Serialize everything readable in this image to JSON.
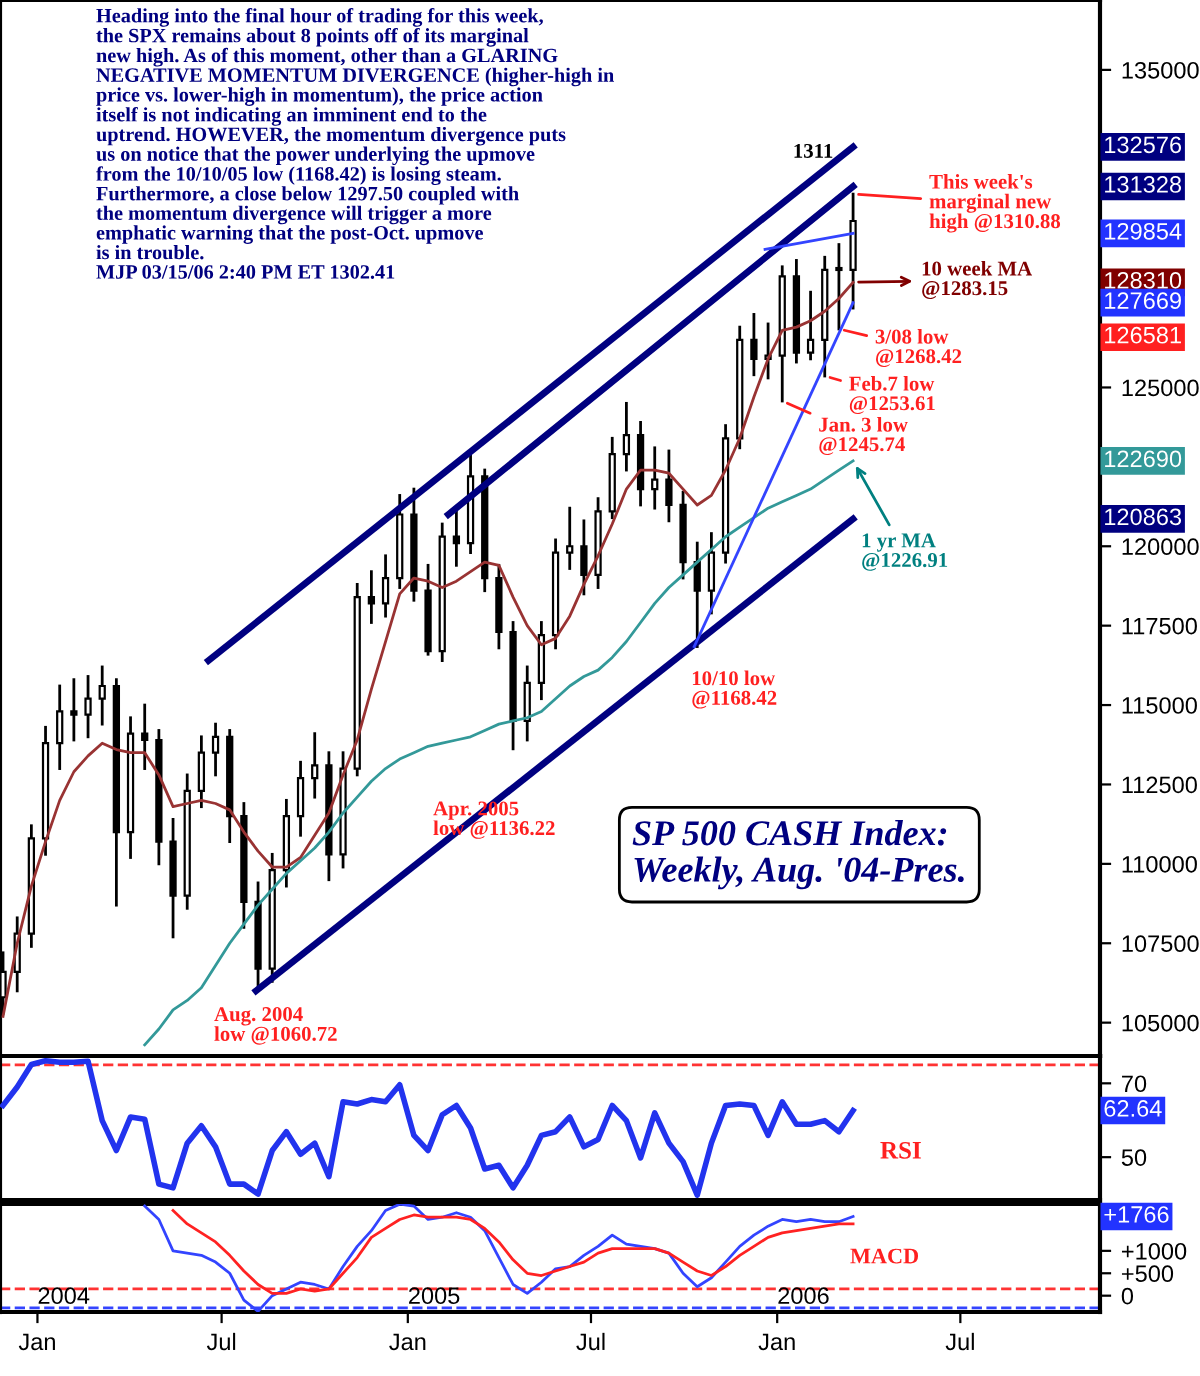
{
  "chart_data": [
    {
      "type": "candlestick",
      "title": "SP 500 CASH Index:\nWeekly, Aug. '04-Pres.",
      "x": [
        "2003-11-28",
        "2003-12-12",
        "2003-12-26",
        "2004-01-09",
        "2004-01-23",
        "2004-02-06",
        "2004-02-20",
        "2004-03-05",
        "2004-03-19",
        "2004-04-02",
        "2004-04-16",
        "2004-04-30",
        "2004-05-14",
        "2004-05-28",
        "2004-06-11",
        "2004-06-25",
        "2004-07-09",
        "2004-07-23",
        "2004-08-06",
        "2004-08-20",
        "2004-09-03",
        "2004-09-17",
        "2004-10-01",
        "2004-10-15",
        "2004-10-29",
        "2004-11-12",
        "2004-11-26",
        "2004-12-10",
        "2004-12-24",
        "2005-01-07",
        "2005-01-21",
        "2005-02-04",
        "2005-02-18",
        "2005-03-04",
        "2005-03-18",
        "2005-04-01",
        "2005-04-15",
        "2005-04-29",
        "2005-05-13",
        "2005-05-27",
        "2005-06-10",
        "2005-06-24",
        "2005-07-08",
        "2005-07-22",
        "2005-08-05",
        "2005-08-19",
        "2005-09-02",
        "2005-09-16",
        "2005-09-30",
        "2005-10-14",
        "2005-10-28",
        "2005-11-11",
        "2005-11-25",
        "2005-12-09",
        "2005-12-23",
        "2006-01-06",
        "2006-01-20",
        "2006-02-03",
        "2006-02-17",
        "2006-03-03",
        "2006-03-17"
      ],
      "ohlc": [
        [
          105800,
          107200,
          105300,
          106600
        ],
        [
          106600,
          108300,
          106000,
          107800
        ],
        [
          107800,
          111200,
          107400,
          110800
        ],
        [
          110800,
          114300,
          110300,
          113800
        ],
        [
          113800,
          115600,
          113000,
          114800
        ],
        [
          114800,
          115800,
          113900,
          114700
        ],
        [
          114700,
          115900,
          114000,
          115200
        ],
        [
          115200,
          116200,
          114400,
          115600
        ],
        [
          115600,
          115800,
          108700,
          111000
        ],
        [
          111000,
          114600,
          110200,
          114100
        ],
        [
          114100,
          115000,
          113000,
          113900
        ],
        [
          113900,
          114200,
          110000,
          110700
        ],
        [
          110700,
          111400,
          107700,
          109000
        ],
        [
          109000,
          112800,
          108600,
          112300
        ],
        [
          112300,
          114000,
          111800,
          113500
        ],
        [
          113500,
          114400,
          112800,
          114000
        ],
        [
          114000,
          114200,
          110700,
          111500
        ],
        [
          111500,
          111900,
          108000,
          108800
        ],
        [
          108800,
          109400,
          106072,
          106700
        ],
        [
          106700,
          110300,
          106300,
          109800
        ],
        [
          109800,
          112000,
          109300,
          111500
        ],
        [
          111500,
          113200,
          110900,
          112700
        ],
        [
          112700,
          114100,
          112100,
          113100
        ],
        [
          113100,
          113500,
          109500,
          110300
        ],
        [
          110300,
          113500,
          109900,
          113000
        ],
        [
          113000,
          118800,
          112800,
          118400
        ],
        [
          118400,
          119200,
          117600,
          118200
        ],
        [
          118200,
          119700,
          117800,
          119000
        ],
        [
          119000,
          121600,
          118700,
          121000
        ],
        [
          121000,
          121800,
          118300,
          118600
        ],
        [
          118600,
          119400,
          116600,
          116700
        ],
        [
          116700,
          120700,
          116400,
          120300
        ],
        [
          120300,
          121200,
          119400,
          120100
        ],
        [
          120100,
          122900,
          119800,
          122200
        ],
        [
          122200,
          122400,
          118600,
          119000
        ],
        [
          119000,
          119400,
          116800,
          117300
        ],
        [
          117300,
          117600,
          113622,
          114500
        ],
        [
          114500,
          116200,
          113900,
          115700
        ],
        [
          115700,
          117600,
          115200,
          117200
        ],
        [
          117200,
          120200,
          116800,
          119800
        ],
        [
          119800,
          121200,
          119300,
          120000
        ],
        [
          120000,
          120800,
          118500,
          119100
        ],
        [
          119100,
          121500,
          118700,
          121100
        ],
        [
          121100,
          123400,
          120900,
          122900
        ],
        [
          122900,
          124500,
          122400,
          123500
        ],
        [
          123500,
          123900,
          121300,
          121800
        ],
        [
          121800,
          123100,
          121200,
          122100
        ],
        [
          122100,
          123000,
          120800,
          121300
        ],
        [
          121300,
          121700,
          119000,
          119500
        ],
        [
          119500,
          120100,
          116842,
          118600
        ],
        [
          118600,
          120400,
          117900,
          119800
        ],
        [
          119800,
          123800,
          119500,
          123400
        ],
        [
          123400,
          126900,
          123100,
          126500
        ],
        [
          126500,
          127300,
          125400,
          125900
        ],
        [
          125900,
          127000,
          125300,
          126000
        ],
        [
          126000,
          128800,
          124574,
          128500
        ],
        [
          128500,
          129000,
          125800,
          126100
        ],
        [
          126100,
          128000,
          125900,
          126500
        ],
        [
          126500,
          129100,
          125361,
          128700
        ],
        [
          128700,
          129500,
          126842,
          128700
        ],
        [
          128700,
          131088,
          127500,
          130241
        ]
      ],
      "series": [
        {
          "type": "line",
          "color": "#993333",
          "values": [
            105200,
            107500,
            109300,
            110700,
            112000,
            112900,
            113400,
            113800,
            113600,
            113500,
            113500,
            112800,
            111800,
            111900,
            112000,
            111900,
            111700,
            111000,
            110400,
            109900,
            109900,
            110200,
            110900,
            111600,
            112800,
            113900,
            115500,
            117000,
            118500,
            119000,
            118900,
            118700,
            118900,
            119200,
            119500,
            119400,
            118400,
            117500,
            116900,
            117100,
            117800,
            118800,
            119700,
            120700,
            121800,
            122400,
            122400,
            122300,
            121800,
            121300,
            121600,
            122400,
            123400,
            124700,
            125900,
            126800,
            126900,
            127100,
            127400,
            127800,
            128310
          ]
        },
        {
          "type": "line",
          "color": "#339999",
          "values": [
            null,
            null,
            null,
            null,
            null,
            null,
            null,
            null,
            null,
            null,
            104300,
            104800,
            105400,
            105700,
            106100,
            106800,
            107500,
            108100,
            108700,
            109200,
            109700,
            110100,
            110500,
            111000,
            111600,
            112100,
            112600,
            113000,
            113300,
            113500,
            113700,
            113800,
            113900,
            114000,
            114200,
            114400,
            114500,
            114600,
            114800,
            115200,
            115600,
            115900,
            116100,
            116500,
            117000,
            117600,
            118200,
            118700,
            119100,
            119500,
            119900,
            120300,
            120600,
            120900,
            121200,
            121400,
            121600,
            121800,
            122100,
            122400,
            122690
          ]
        },
        {
          "type": "line",
          "color": "#000080",
          "x": [
            "2004-06-18",
            "2006-03-17"
          ],
          "values": [
            116400,
            132576
          ]
        },
        {
          "type": "line",
          "color": "#000080",
          "x": [
            "2005-02-10",
            "2006-03-17"
          ],
          "values": [
            121000,
            131328
          ]
        },
        {
          "type": "line",
          "color": "#000080",
          "x": [
            "2004-08-04",
            "2006-03-17"
          ],
          "values": [
            106000,
            120863
          ]
        },
        {
          "type": "line",
          "color": "#3344ff",
          "x": [
            "2005-12-20",
            "2006-03-17"
          ],
          "values": [
            129350,
            129854
          ]
        },
        {
          "type": "line",
          "color": "#3344ff",
          "x": [
            "2005-10-11",
            "2006-03-17"
          ],
          "values": [
            116842,
            127669
          ]
        }
      ],
      "xlim": [
        "2003-11-25",
        "2006-11-16"
      ],
      "ylim": [
        103950,
        137200
      ],
      "yticks": [
        105000,
        107500,
        110000,
        112500,
        115000,
        117500,
        120000,
        {
          "value": 122500,
          "label": null
        },
        125000,
        {
          "value": 127500,
          "label": null
        },
        {
          "value": 130000,
          "label": null
        },
        {
          "value": 132500,
          "label": null
        },
        135000
      ],
      "tick_labels": "y",
      "annotations": [
        "Heading into the final hour of trading for this week,\nthe SPX remains about 8 points off of its marginal\nnew high. As of this moment, other than a GLARING\nNEGATIVE MOMENTUM DIVERGENCE (higher-high in\nprice vs. lower-high in momentum), the price action\nitself is not indicating an imminent end to the\nuptrend. HOWEVER, the momentum divergence puts\nus on notice that the power underlying the upmove\nfrom the 10/10/05 low (1168.42) is losing steam.\nFurthermore, a close below 1297.50 coupled with\nthe momentum divergence will trigger a more\nemphatic warning that the post-Oct. upmove\nis in trouble.\nMJP 03/15/06 2:40 PM ET 1302.41",
        {
          "text": "Aug. 2004\nlow @1060.72",
          "x": "2004-08-06",
          "y": 106072
        },
        {
          "text": "Apr. 2005\nlow @1136.22",
          "x": "2005-04-15",
          "y": 113622
        },
        {
          "text": "10/10 low\n@1168.42",
          "x": "2005-10-14",
          "y": 116842
        },
        {
          "text": "Jan. 3 low\n@1245.74",
          "x": "2006-01-06",
          "y": 124574
        },
        {
          "text": "Feb.7 low\n@1253.61",
          "x": "2006-02-17",
          "y": 125361
        },
        {
          "text": "3/08 low\n@1268.42",
          "x": "2006-03-03",
          "y": 126842
        },
        {
          "text": "This week's\nmarginal new\nhigh @1310.88",
          "x": "2006-03-17",
          "y": 131088
        },
        {
          "text": "1311",
          "x": "2006-03-17",
          "y": 131088
        },
        {
          "text": "10 week MA\n@1283.15",
          "x": "2006-03-17",
          "y": 128315
        },
        {
          "text": "1 yr MA\n@1226.91",
          "x": "2006-03-17",
          "y": 122691
        },
        {
          "text": "132576",
          "y": 132576
        },
        {
          "text": "131328",
          "y": 131328
        },
        {
          "text": "129854",
          "y": 129854
        },
        {
          "text": "128310",
          "y": 128310
        },
        {
          "text": "127669",
          "y": 127669
        },
        {
          "text": "126581",
          "y": 126581
        },
        {
          "text": "122690",
          "y": 122690
        },
        {
          "text": "120863",
          "y": 120863
        }
      ]
    },
    {
      "type": "line",
      "x": [
        "2003-11-28",
        "2003-12-12",
        "2003-12-26",
        "2004-01-09",
        "2004-01-23",
        "2004-02-06",
        "2004-02-20",
        "2004-03-05",
        "2004-03-19",
        "2004-04-02",
        "2004-04-16",
        "2004-04-30",
        "2004-05-14",
        "2004-05-28",
        "2004-06-11",
        "2004-06-25",
        "2004-07-09",
        "2004-07-23",
        "2004-08-06",
        "2004-08-20",
        "2004-09-03",
        "2004-09-17",
        "2004-10-01",
        "2004-10-15",
        "2004-10-29",
        "2004-11-12",
        "2004-11-26",
        "2004-12-10",
        "2004-12-24",
        "2005-01-07",
        "2005-01-21",
        "2005-02-04",
        "2005-02-18",
        "2005-03-04",
        "2005-03-18",
        "2005-04-01",
        "2005-04-15",
        "2005-04-29",
        "2005-05-13",
        "2005-05-27",
        "2005-06-10",
        "2005-06-24",
        "2005-07-08",
        "2005-07-22",
        "2005-08-05",
        "2005-08-19",
        "2005-09-02",
        "2005-09-16",
        "2005-09-30",
        "2005-10-14",
        "2005-10-28",
        "2005-11-11",
        "2005-11-25",
        "2005-12-09",
        "2005-12-23",
        "2006-01-06",
        "2006-01-20",
        "2006-02-03",
        "2006-02-17",
        "2006-03-03",
        "2006-03-17"
      ],
      "series": [
        {
          "color": "#2233ee",
          "values": [
            64.0,
            69.0,
            75.1,
            76.1,
            75.7,
            75.7,
            76.0,
            59.9,
            51.8,
            60.9,
            60.3,
            42.7,
            41.7,
            53.8,
            58.5,
            52.8,
            42.7,
            42.7,
            40.0,
            51.8,
            56.9,
            50.8,
            53.8,
            44.7,
            65.0,
            64.4,
            65.6,
            65.0,
            69.6,
            55.9,
            51.8,
            61.5,
            64.0,
            57.9,
            46.8,
            47.8,
            41.7,
            47.8,
            55.9,
            56.9,
            60.9,
            52.8,
            54.8,
            64.0,
            59.9,
            49.8,
            62.0,
            53.8,
            48.8,
            39.7,
            53.8,
            64.0,
            64.4,
            64.0,
            55.9,
            65.0,
            58.9,
            58.9,
            59.9,
            56.9,
            62.64
          ]
        }
      ],
      "xlim": [
        "2003-11-25",
        "2006-11-16"
      ],
      "ylim": [
        38.4,
        77.4
      ],
      "yticks": [
        50,
        70
      ],
      "tick_labels": "y",
      "ref_lines": [
        {
          "axis": "y",
          "value": 75,
          "color": "#ff3333",
          "line_style": "dashed"
        }
      ],
      "annotations": [
        "RSI",
        {
          "text": "62.64",
          "y": 62.64
        }
      ]
    },
    {
      "type": "line",
      "series": [
        {
          "color": "#3344ff",
          "x": [
            "2004-04-16",
            "2004-04-30",
            "2004-05-14",
            "2004-05-28",
            "2004-06-11",
            "2004-06-25",
            "2004-07-09",
            "2004-07-23",
            "2004-08-06",
            "2004-08-20",
            "2004-09-03",
            "2004-09-17",
            "2004-10-01",
            "2004-10-15",
            "2004-10-29",
            "2004-11-12",
            "2004-11-26",
            "2004-12-10",
            "2004-12-24",
            "2005-01-07",
            "2005-01-21",
            "2005-02-04",
            "2005-02-18",
            "2005-03-04",
            "2005-03-18",
            "2005-04-01",
            "2005-04-15",
            "2005-04-29",
            "2005-05-13",
            "2005-05-27",
            "2005-06-10",
            "2005-06-24",
            "2005-07-08",
            "2005-07-22",
            "2005-08-05",
            "2005-08-19",
            "2005-09-02",
            "2005-09-16",
            "2005-09-30",
            "2005-10-14",
            "2005-10-28",
            "2005-11-11",
            "2005-11-25",
            "2005-12-09",
            "2005-12-23",
            "2006-01-06",
            "2006-01-20",
            "2006-02-03",
            "2006-02-17",
            "2006-03-03",
            "2006-03-17"
          ],
          "values": [
            2000,
            1700,
            1000,
            950,
            900,
            750,
            500,
            -100,
            -350,
            0,
            150,
            300,
            250,
            150,
            650,
            1100,
            1450,
            1900,
            2040,
            2000,
            1700,
            1750,
            1850,
            1750,
            1450,
            850,
            250,
            50,
            300,
            600,
            650,
            900,
            1100,
            1350,
            1150,
            1100,
            1050,
            950,
            500,
            200,
            400,
            750,
            1100,
            1350,
            1550,
            1700,
            1650,
            1700,
            1650,
            1650,
            1766
          ]
        },
        {
          "color": "#ff2222",
          "x": [
            "2004-05-14",
            "2004-05-28",
            "2004-06-11",
            "2004-06-25",
            "2004-07-09",
            "2004-07-23",
            "2004-08-06",
            "2004-08-20",
            "2004-09-03",
            "2004-09-17",
            "2004-10-01",
            "2004-10-15",
            "2004-10-29",
            "2004-11-12",
            "2004-11-26",
            "2004-12-10",
            "2004-12-24",
            "2005-01-07",
            "2005-01-21",
            "2005-02-04",
            "2005-02-18",
            "2005-03-04",
            "2005-03-18",
            "2005-04-01",
            "2005-04-15",
            "2005-04-29",
            "2005-05-13",
            "2005-05-27",
            "2005-06-10",
            "2005-06-24",
            "2005-07-08",
            "2005-07-22",
            "2005-08-05",
            "2005-08-19",
            "2005-09-02",
            "2005-09-16",
            "2005-09-30",
            "2005-10-14",
            "2005-10-28",
            "2005-11-11",
            "2005-11-25",
            "2005-12-09",
            "2005-12-23",
            "2006-01-06",
            "2006-01-20",
            "2006-02-03",
            "2006-02-17",
            "2006-03-03",
            "2006-03-17"
          ],
          "values": [
            1900,
            1600,
            1400,
            1200,
            900,
            550,
            250,
            50,
            50,
            150,
            100,
            150,
            500,
            850,
            1300,
            1500,
            1700,
            1800,
            1750,
            1750,
            1750,
            1700,
            1500,
            1200,
            800,
            500,
            450,
            550,
            650,
            750,
            950,
            1050,
            1050,
            1050,
            1050,
            950,
            750,
            550,
            450,
            650,
            900,
            1100,
            1300,
            1400,
            1450,
            1500,
            1550,
            1600,
            1600
          ]
        }
      ],
      "xlim": [
        "2003-11-25",
        "2006-11-16"
      ],
      "ylim": [
        -364,
        2045
      ],
      "yticks": [
        0,
        {
          "value": 500,
          "label": "+500"
        },
        {
          "value": 1000,
          "label": "+1000"
        }
      ],
      "xticks": [
        {
          "value": "2004-01-01",
          "label": "Jan"
        },
        {
          "value": "2004-07-01",
          "label": "Jul"
        },
        {
          "value": "2005-01-01",
          "label": "Jan"
        },
        {
          "value": "2005-07-01",
          "label": "Jul"
        },
        {
          "value": "2006-01-01",
          "label": "Jan"
        },
        {
          "value": "2006-07-01",
          "label": "Jul"
        }
      ],
      "ref_lines": [
        {
          "axis": "y",
          "value": 150,
          "color": "#ff3333",
          "line_style": "dashed"
        },
        {
          "axis": "y",
          "value": -270,
          "color": "#3344ff",
          "line_style": "dashed"
        }
      ],
      "annotations": [
        "MACD",
        {
          "text": "2004",
          "x": "2004-01-01"
        },
        {
          "text": "2005",
          "x": "2005-01-01"
        },
        {
          "text": "2006",
          "x": "2006-01-01"
        },
        {
          "text": "+1766",
          "y": 1766
        }
      ]
    }
  ]
}
